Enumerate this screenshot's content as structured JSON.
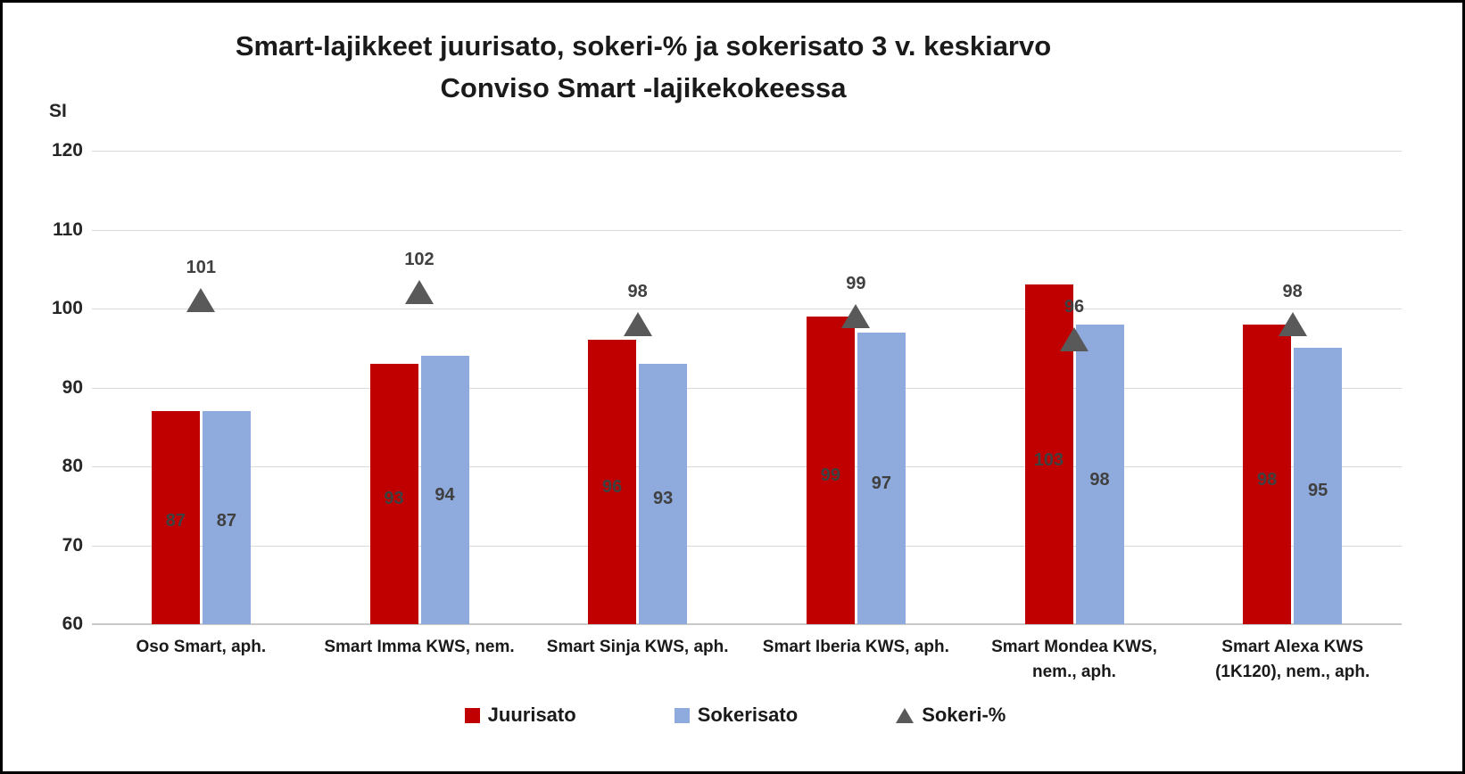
{
  "chart_data": {
    "type": "bar",
    "title_line1": "Smart-lajikkeet juurisato, sokeri-% ja sokerisato 3 v. keskiarvo",
    "title_line2": "Conviso Smart -lajikekokeessa",
    "y_axis_label": "SI",
    "ylim": [
      60,
      120
    ],
    "yticks": [
      120,
      110,
      100,
      90,
      80,
      70,
      60
    ],
    "grid": true,
    "legend_position": "bottom",
    "categories": [
      "Oso Smart, aph.",
      "Smart Imma KWS, nem.",
      "Smart Sinja KWS, aph.",
      "Smart Iberia KWS, aph.",
      "Smart Mondea KWS, nem., aph.",
      "Smart Alexa KWS (1K120), nem., aph."
    ],
    "series": [
      {
        "name": "Juurisato",
        "marker": "bar",
        "color": "#C00000",
        "values": [
          87,
          93,
          96,
          99,
          103,
          98
        ]
      },
      {
        "name": "Sokerisato",
        "marker": "bar",
        "color": "#8FAADC",
        "values": [
          87,
          94,
          93,
          97,
          98,
          95
        ]
      },
      {
        "name": "Sokeri-%",
        "marker": "triangle",
        "color": "#595959",
        "values": [
          101,
          102,
          98,
          99,
          96,
          98
        ]
      }
    ]
  },
  "colors": {
    "gridline": "#d9d9d9",
    "axis_line": "#c9c9c9",
    "data_label": "#404040",
    "text": "#1a1a1a"
  }
}
